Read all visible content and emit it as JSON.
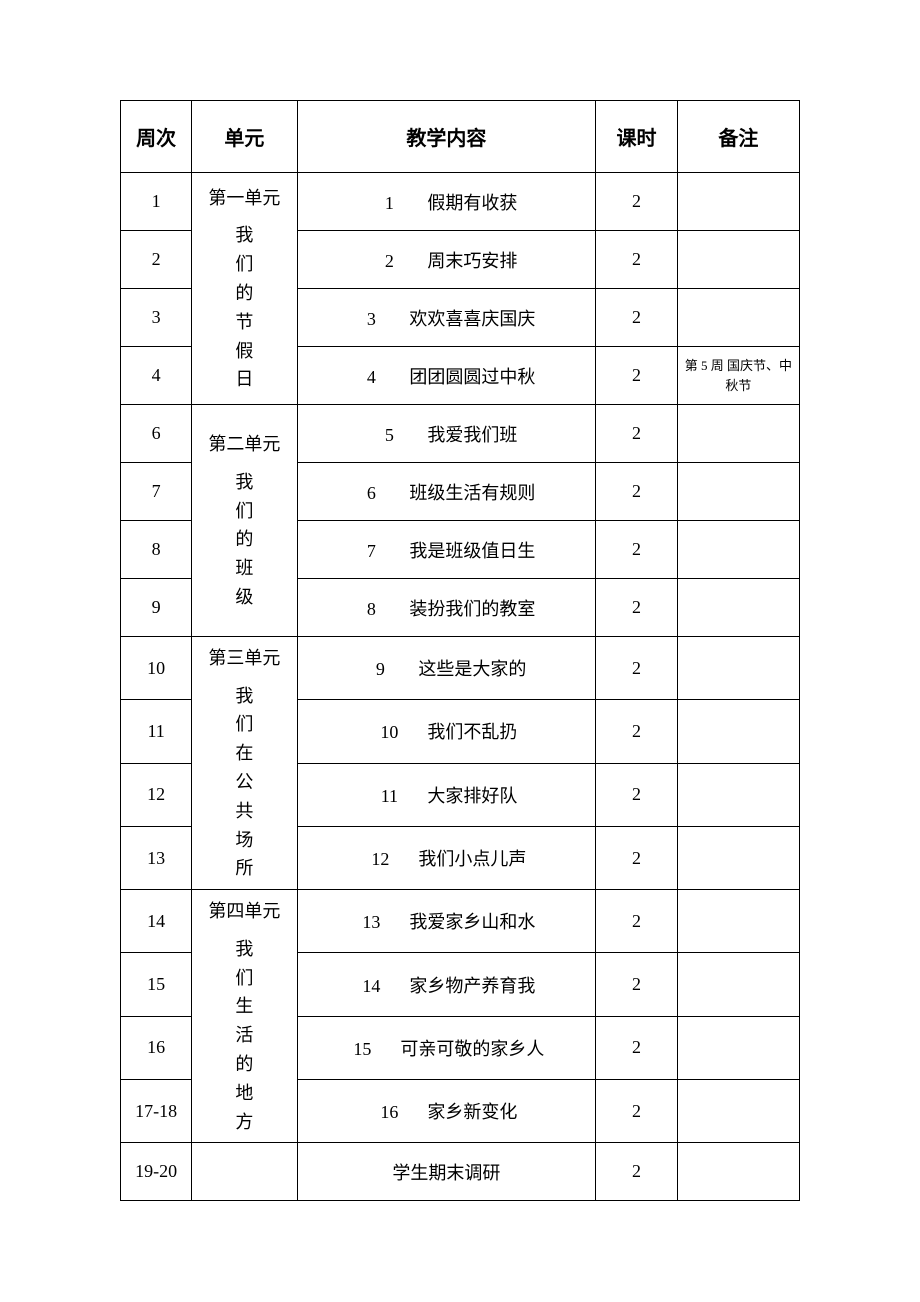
{
  "headers": {
    "week": "周次",
    "unit": "单元",
    "content": "教学内容",
    "hours": "课时",
    "note": "备注"
  },
  "units": {
    "u1": {
      "title": "第一单元",
      "name": "我\n们\n的\n节\n假\n日"
    },
    "u2": {
      "title": "第二单元",
      "name": "我\n们\n的\n班\n级"
    },
    "u3": {
      "title": "第三单元",
      "name": "我\n们\n在\n公\n共\n场\n所"
    },
    "u4": {
      "title": "第四单元",
      "name": "我\n们\n生\n活\n的\n地\n方"
    }
  },
  "rows": [
    {
      "week": "1",
      "num": "1",
      "title": "假期有收获",
      "hours": "2",
      "note": ""
    },
    {
      "week": "2",
      "num": "2",
      "title": "周末巧安排",
      "hours": "2",
      "note": ""
    },
    {
      "week": "3",
      "num": "3",
      "title": "欢欢喜喜庆国庆",
      "hours": "2",
      "note": ""
    },
    {
      "week": "4",
      "num": "4",
      "title": "团团圆圆过中秋",
      "hours": "2",
      "note": "第 5 周 国庆节、中秋节"
    },
    {
      "week": "6",
      "num": "5",
      "title": "我爱我们班",
      "hours": "2",
      "note": ""
    },
    {
      "week": "7",
      "num": "6",
      "title": "班级生活有规则",
      "hours": "2",
      "note": ""
    },
    {
      "week": "8",
      "num": "7",
      "title": "我是班级值日生",
      "hours": "2",
      "note": ""
    },
    {
      "week": "9",
      "num": "8",
      "title": "装扮我们的教室",
      "hours": "2",
      "note": ""
    },
    {
      "week": "10",
      "num": "9",
      "title": "这些是大家的",
      "hours": "2",
      "note": ""
    },
    {
      "week": "11",
      "num": "10",
      "title": "我们不乱扔",
      "hours": "2",
      "note": ""
    },
    {
      "week": "12",
      "num": "11",
      "title": "大家排好队",
      "hours": "2",
      "note": ""
    },
    {
      "week": "13",
      "num": "12",
      "title": "我们小点儿声",
      "hours": "2",
      "note": ""
    },
    {
      "week": "14",
      "num": "13",
      "title": "我爱家乡山和水",
      "hours": "2",
      "note": ""
    },
    {
      "week": "15",
      "num": "14",
      "title": "家乡物产养育我",
      "hours": "2",
      "note": ""
    },
    {
      "week": "16",
      "num": "15",
      "title": "可亲可敬的家乡人",
      "hours": "2",
      "note": ""
    },
    {
      "week": "17-18",
      "num": "16",
      "title": "家乡新变化",
      "hours": "2",
      "note": ""
    },
    {
      "week": "19-20",
      "num": "",
      "title": "学生期末调研",
      "hours": "2",
      "note": ""
    }
  ],
  "style": {
    "border_color": "#000000",
    "background_color": "#ffffff",
    "header_fontsize": 20,
    "cell_fontsize": 18,
    "note_fontsize": 13,
    "font_family": "SimSun"
  }
}
